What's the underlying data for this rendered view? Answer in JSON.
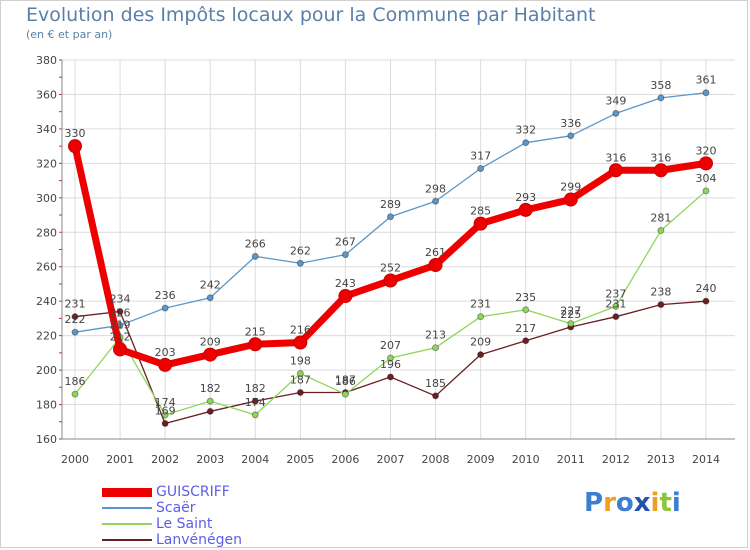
{
  "header": {
    "title": "Evolution des Impôts locaux pour la Commune par Habitant",
    "subtitle": "(en € et par an)"
  },
  "chart_data": {
    "type": "line",
    "title": "Evolution des Impôts locaux pour la Commune par Habitant",
    "subtitle": "(en € et par an)",
    "xlabel": "",
    "ylabel": "",
    "ylim": [
      160,
      380
    ],
    "yticks": [
      160,
      180,
      200,
      220,
      240,
      260,
      280,
      300,
      320,
      340,
      360,
      380
    ],
    "grid": true,
    "legend_position": "bottom-left",
    "categories": [
      "2000",
      "2001",
      "2002",
      "2003",
      "2004",
      "2005",
      "2006",
      "2007",
      "2008",
      "2009",
      "2010",
      "2011",
      "2012",
      "2013",
      "2014"
    ],
    "series": [
      {
        "name": "Lanvénégen",
        "color": "#6b1f24",
        "values": [
          231,
          234,
          169,
          176,
          182,
          187,
          187,
          196,
          185,
          209,
          217,
          225,
          231,
          238,
          240
        ],
        "labels": [
          "231",
          "234",
          "169",
          "",
          "182",
          "187",
          "187",
          "196",
          "185",
          "209",
          "217",
          "225",
          "231",
          "238",
          "240"
        ]
      },
      {
        "name": "Le Saint",
        "color": "#8ed65b",
        "values": [
          186,
          219,
          174,
          182,
          174,
          198,
          186,
          207,
          213,
          231,
          235,
          227,
          237,
          281,
          304
        ],
        "labels": [
          "186",
          "219",
          "174",
          "182",
          "174",
          "198",
          "186",
          "207",
          "213",
          "231",
          "235",
          "227",
          "237",
          "281",
          "304"
        ]
      },
      {
        "name": "Scaër",
        "color": "#5b97c9",
        "values": [
          222,
          226,
          236,
          242,
          266,
          262,
          267,
          289,
          298,
          317,
          332,
          336,
          349,
          358,
          361
        ],
        "labels": [
          "222",
          "226",
          "236",
          "242",
          "266",
          "262",
          "267",
          "289",
          "298",
          "317",
          "332",
          "336",
          "349",
          "358",
          "361"
        ]
      },
      {
        "name": "GUISCRIFF",
        "color": "#ee0000",
        "values": [
          330,
          212,
          203,
          209,
          215,
          216,
          243,
          252,
          261,
          285,
          293,
          299,
          316,
          316,
          320
        ],
        "labels": [
          "330",
          "212",
          "203",
          "209",
          "215",
          "216",
          "243",
          "252",
          "261",
          "285",
          "293",
          "299",
          "316",
          "316",
          "320"
        ]
      }
    ]
  },
  "legend": {
    "items": [
      {
        "label": "GUISCRIFF",
        "color": "#ee0000"
      },
      {
        "label": "Scaër",
        "color": "#5b97c9"
      },
      {
        "label": "Le Saint",
        "color": "#8ed65b"
      },
      {
        "label": "Lanvénégen",
        "color": "#6b1f24"
      }
    ]
  },
  "logo": {
    "letters": [
      "P",
      "r",
      "o",
      "x",
      "i",
      "t",
      "i"
    ],
    "colors": [
      "#3a7fd0",
      "#f0a020",
      "#3a7fd0",
      "#2255aa",
      "#f0a020",
      "#8cc63f",
      "#3a7fd0"
    ]
  }
}
